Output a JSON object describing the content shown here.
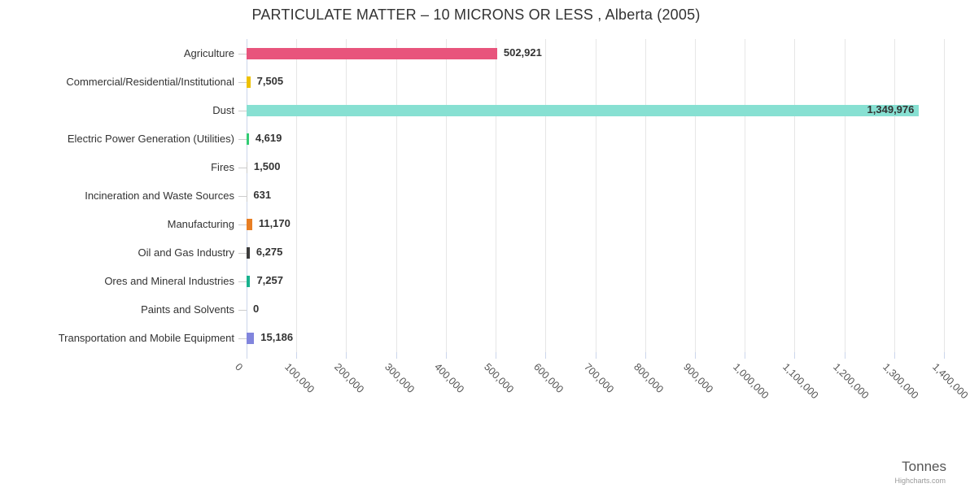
{
  "title": "PARTICULATE MATTER – 10 MICRONS OR LESS , Alberta (2005)",
  "axis_title": "Tonnes",
  "credits": "Highcharts.com",
  "chart_data": {
    "type": "bar",
    "orientation": "horizontal",
    "title": "PARTICULATE MATTER – 10 MICRONS OR LESS , Alberta (2005)",
    "categories": [
      "Agriculture",
      "Commercial/Residential/Institutional",
      "Dust",
      "Electric Power Generation (Utilities)",
      "Fires",
      "Incineration and Waste Sources",
      "Manufacturing",
      "Oil and Gas Industry",
      "Ores and Mineral Industries",
      "Paints and Solvents",
      "Transportation and Mobile Equipment"
    ],
    "values": [
      502921,
      7505,
      1349976,
      4619,
      1500,
      631,
      11170,
      6275,
      7257,
      0,
      15186
    ],
    "value_labels": [
      "502,921",
      "7,505",
      "1,349,976",
      "4,619",
      "1,500",
      "631",
      "11,170",
      "6,275",
      "7,257",
      "0",
      "15,186"
    ],
    "colors": [
      "#e8547c",
      "#eec100",
      "#87e0d2",
      "#32cc74",
      "#cccccc",
      "#cccccc",
      "#e87e23",
      "#3b3b3b",
      "#19b28e",
      "#cccccc",
      "#8185dd"
    ],
    "label_inside": [
      false,
      false,
      true,
      false,
      false,
      false,
      false,
      false,
      false,
      false,
      false
    ],
    "xlabel": "Tonnes",
    "ylabel": "",
    "xlim": [
      0,
      1400000
    ],
    "x_ticks": [
      "0",
      "100,000",
      "200,000",
      "300,000",
      "400,000",
      "500,000",
      "600,000",
      "700,000",
      "800,000",
      "900,000",
      "1,000,000",
      "1,100,000",
      "1,200,000",
      "1,300,000",
      "1,400,000"
    ],
    "grid": true,
    "legend": false
  },
  "ui_colors": {
    "axis_line": "#ccd6eb",
    "gridline": "#e6e6e6",
    "category_tick": "#cccccc",
    "title_text": "#333333",
    "axis_label_text": "#555555",
    "credits_text": "#999999"
  }
}
